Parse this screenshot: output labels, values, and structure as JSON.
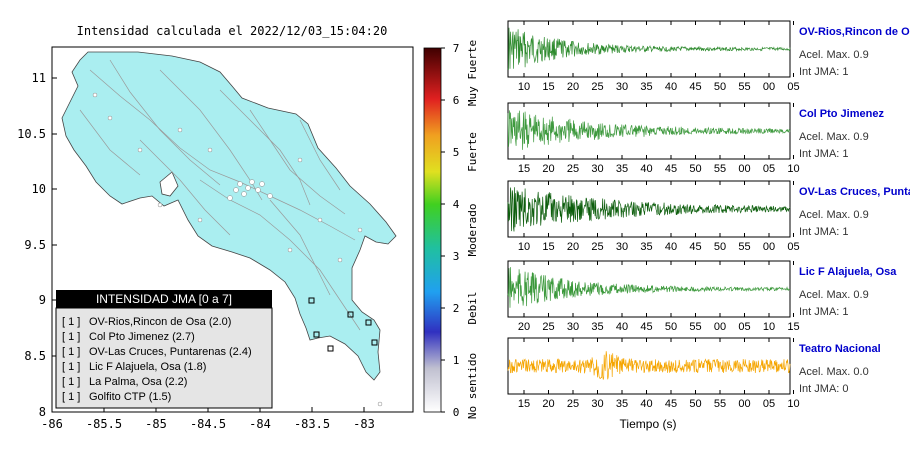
{
  "map": {
    "title": "Intensidad calculada el 2022/12/03_15:04:20",
    "x_ticks": [
      "-86",
      "-85.5",
      "-85",
      "-84.5",
      "-84",
      "-83.5",
      "-83"
    ],
    "y_ticks": [
      "11",
      "10.5",
      "10",
      "9.5",
      "9",
      "8.5",
      "8"
    ],
    "colorbar": {
      "ticks": [
        "0",
        "1",
        "2",
        "3",
        "4",
        "5",
        "6",
        "7"
      ],
      "category_labels": [
        "No sentido",
        "Debil",
        "Moderado",
        "Fuerte",
        "Muy Fuerte"
      ]
    },
    "legend": {
      "title": "INTENSIDAD JMA [0 a 7]",
      "items": [
        {
          "level": "[ 1 ]",
          "name": "OV-Rios,Rincon de Osa (2.0)"
        },
        {
          "level": "[ 1 ]",
          "name": "Col Pto Jimenez (2.7)"
        },
        {
          "level": "[ 1 ]",
          "name": "OV-Las Cruces, Puntarenas (2.4)"
        },
        {
          "level": "[ 1 ]",
          "name": "Lic F Alajuela, Osa (1.8)"
        },
        {
          "level": "[ 1 ]",
          "name": "La Palma, Osa (2.2)"
        },
        {
          "level": "[ 1 ]",
          "name": "Golfito CTP (1.5)"
        }
      ]
    }
  },
  "waveforms": [
    {
      "name": "OV-Rios,Rincon de Osa",
      "accel": "Acel. Max. 0.9",
      "jma": "Int JMA: 1",
      "ticks": [
        "10",
        "15",
        "20",
        "25",
        "30",
        "35",
        "40",
        "45",
        "50",
        "55",
        "00",
        "05"
      ],
      "color": "#2e8b2e",
      "amp": 0.95,
      "decay": 0.18,
      "onset": 0.0,
      "noise": 0.0
    },
    {
      "name": "Col Pto Jimenez",
      "accel": "Acel. Max. 0.9",
      "jma": "Int JMA: 1",
      "ticks": [
        "15",
        "20",
        "25",
        "30",
        "35",
        "40",
        "45",
        "50",
        "55",
        "00",
        "05",
        "10"
      ],
      "color": "#3f9a3f",
      "amp": 0.9,
      "decay": 0.3,
      "onset": 0.0,
      "noise": 0.0
    },
    {
      "name": "OV-Las Cruces, Puntarenas",
      "accel": "Acel. Max. 0.9",
      "jma": "Int JMA: 1",
      "ticks": [
        "10",
        "15",
        "20",
        "25",
        "30",
        "35",
        "40",
        "45",
        "50",
        "55",
        "00",
        "05"
      ],
      "color": "#0d5e0d",
      "amp": 0.95,
      "decay": 0.35,
      "onset": 0.0,
      "noise": 0.0
    },
    {
      "name": "Lic F Alajuela, Osa",
      "accel": "Acel. Max. 0.9",
      "jma": "Int JMA: 1",
      "ticks": [
        "20",
        "25",
        "30",
        "35",
        "40",
        "45",
        "50",
        "55",
        "00",
        "05",
        "10",
        "15"
      ],
      "color": "#3a983a",
      "amp": 0.9,
      "decay": 0.22,
      "onset": 0.0,
      "noise": 0.0
    },
    {
      "name": "Teatro Nacional",
      "accel": "Acel. Max. 0.0",
      "jma": "Int JMA: 0",
      "ticks": [
        "15",
        "20",
        "25",
        "30",
        "35",
        "40",
        "45",
        "50",
        "55",
        "00",
        "05",
        "10"
      ],
      "color": "#f5a500",
      "amp": 0.8,
      "decay": 0.0,
      "onset": 0.0,
      "noise": 1.0
    }
  ],
  "xlabel": "Tiempo (s)",
  "colors": {
    "land": "#aaeef0",
    "station_name": "#0000cc",
    "legend_header": "#000000"
  }
}
